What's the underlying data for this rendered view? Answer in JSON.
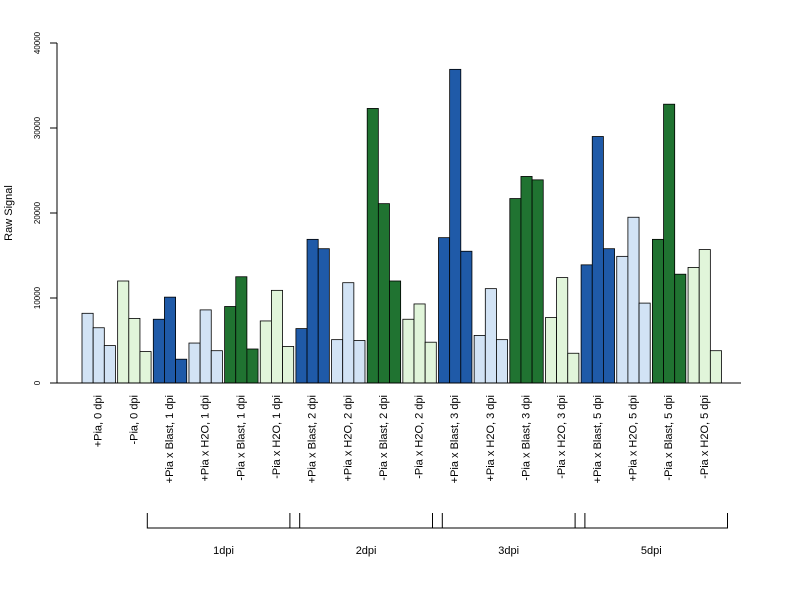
{
  "chart_data": {
    "type": "bar",
    "title": "",
    "xlabel": "",
    "ylabel": "Raw Signal",
    "ylim": [
      0,
      40000
    ],
    "yticks": [
      0,
      10000,
      20000,
      30000,
      40000
    ],
    "grid": false,
    "legend": "none",
    "categories": [
      "+Pia, 0 dpi",
      "-Pia, 0 dpi",
      "+Pia x Blast, 1 dpi",
      "+Pia x H2O, 1 dpi",
      "-Pia x Blast, 1 dpi",
      "-Pia x H2O, 1 dpi",
      "+Pia x Blast, 2 dpi",
      "+Pia x H2O, 2 dpi",
      "-Pia x Blast, 2 dpi",
      "-Pia x H2O, 2 dpi",
      "+Pia x Blast, 3 dpi",
      "+Pia x H2O, 3 dpi",
      "-Pia x Blast, 3 dpi",
      "-Pia x H2O, 3 dpi",
      "+Pia x Blast, 5 dpi",
      "+Pia x H2O, 5 dpi",
      "-Pia x Blast, 5 dpi",
      "-Pia x H2O, 5 dpi"
    ],
    "values": [
      [
        8200,
        6500,
        4400
      ],
      [
        12000,
        7600,
        3700
      ],
      [
        7500,
        10100,
        2800
      ],
      [
        4700,
        8600,
        3800
      ],
      [
        9000,
        12500,
        4000
      ],
      [
        7300,
        10900,
        4300
      ],
      [
        6400,
        16900,
        15800
      ],
      [
        5100,
        11800,
        5000
      ],
      [
        32300,
        21100,
        12000
      ],
      [
        7500,
        9300,
        4800
      ],
      [
        17100,
        36900,
        15500
      ],
      [
        5600,
        11100,
        5100
      ],
      [
        21700,
        24300,
        23900
      ],
      [
        7700,
        12400,
        3500
      ],
      [
        13900,
        29000,
        15800
      ],
      [
        14900,
        19500,
        9400
      ],
      [
        16900,
        32800,
        12800
      ],
      [
        13600,
        15700,
        3800
      ]
    ],
    "bar_colors": [
      "#d2e3f5",
      "#e1f5da",
      "#1f5aa8",
      "#d2e3f5",
      "#207331",
      "#e1f5da",
      "#1f5aa8",
      "#d2e3f5",
      "#207331",
      "#e1f5da",
      "#1f5aa8",
      "#d2e3f5",
      "#207331",
      "#e1f5da",
      "#1f5aa8",
      "#d2e3f5",
      "#207331",
      "#e1f5da"
    ],
    "groups": [
      {
        "label": "1dpi",
        "from": 2,
        "to": 5
      },
      {
        "label": "2dpi",
        "from": 6,
        "to": 9
      },
      {
        "label": "3dpi",
        "from": 10,
        "to": 13
      },
      {
        "label": "5dpi",
        "from": 14,
        "to": 17
      }
    ]
  }
}
